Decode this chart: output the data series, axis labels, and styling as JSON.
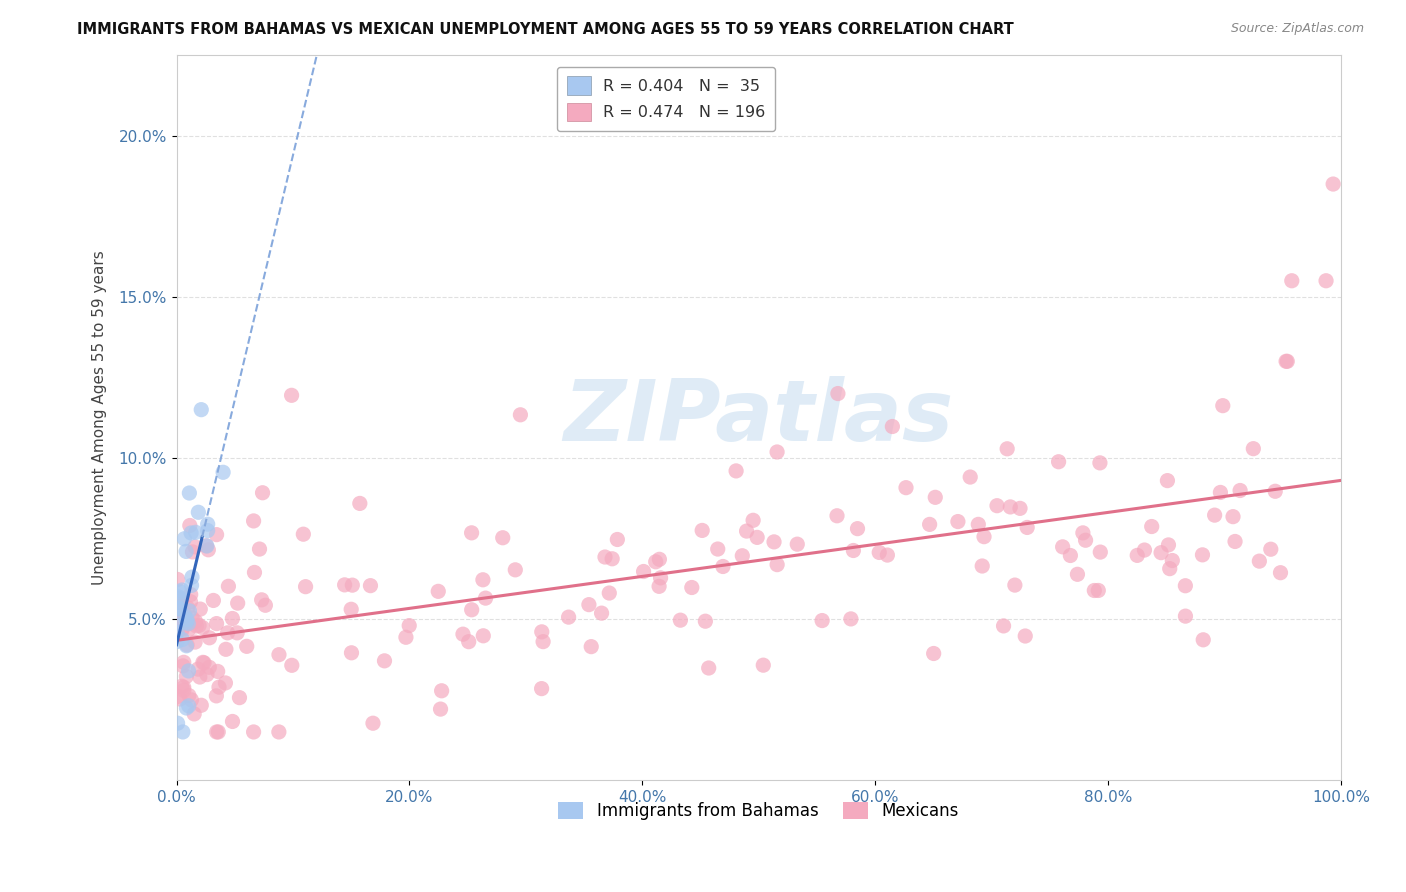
{
  "title": "IMMIGRANTS FROM BAHAMAS VS MEXICAN UNEMPLOYMENT AMONG AGES 55 TO 59 YEARS CORRELATION CHART",
  "source": "Source: ZipAtlas.com",
  "ylabel": "Unemployment Among Ages 55 to 59 years",
  "bahamas_R": 0.404,
  "bahamas_N": 35,
  "mexican_R": 0.474,
  "mexican_N": 196,
  "bahamas_color": "#A8C8F0",
  "mexican_color": "#F4AABF",
  "bahamas_line_solid_color": "#3366BB",
  "bahamas_line_dash_color": "#88AADD",
  "mexican_line_color": "#E0708A",
  "background_color": "#FFFFFF",
  "grid_color": "#DDDDDD",
  "xlim": [
    0,
    1.0
  ],
  "ylim": [
    0,
    0.225
  ],
  "xtick_labels": [
    "0.0%",
    "20.0%",
    "40.0%",
    "60.0%",
    "80.0%",
    "100.0%"
  ],
  "xtick_values": [
    0.0,
    0.2,
    0.4,
    0.6,
    0.8,
    1.0
  ],
  "ytick_labels": [
    "5.0%",
    "10.0%",
    "15.0%",
    "20.0%"
  ],
  "ytick_values": [
    0.05,
    0.1,
    0.15,
    0.2
  ],
  "legend_bahamas_label": "R = 0.404   N =  35",
  "legend_mexican_label": "R = 0.474   N = 196",
  "bottom_legend_bahamas": "Immigrants from Bahamas",
  "bottom_legend_mexican": "Mexicans",
  "watermark": "ZIPatlas"
}
